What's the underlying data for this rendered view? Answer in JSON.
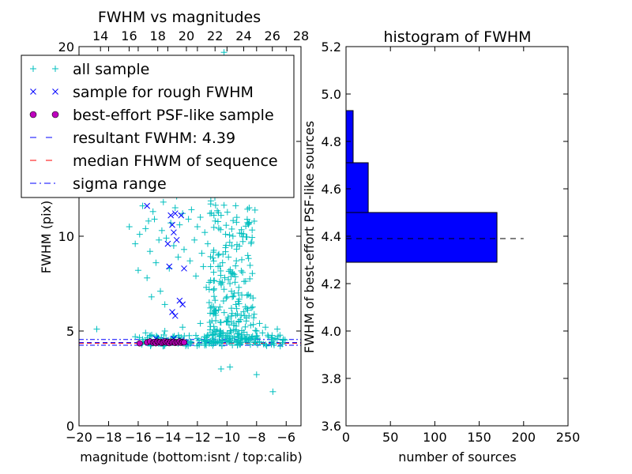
{
  "chart_data": [
    {
      "type": "scatter",
      "title": "FWHM vs magnitudes",
      "xlabel": "magnitude (bottom:isnt / top:calib)",
      "ylabel": "FWHM (pix)",
      "xlim": [
        -20,
        -5
      ],
      "ylim": [
        0,
        20
      ],
      "xlim_top": [
        12.5,
        28
      ],
      "xticks": [
        "−20",
        "−18",
        "−16",
        "−14",
        "−12",
        "−10",
        "−8",
        "−6"
      ],
      "xticks_top": [
        "14",
        "16",
        "18",
        "20",
        "22",
        "24",
        "26",
        "28"
      ],
      "yticks": [
        "0",
        "5",
        "10",
        "15",
        "20"
      ],
      "legend": {
        "placement": "upper-left",
        "entries": [
          {
            "label": "all sample",
            "marker": "+",
            "color": "#00bfbf"
          },
          {
            "label": "sample for rough FWHM",
            "marker": "x",
            "color": "#0000ff"
          },
          {
            "label": "best-effort PSF-like sample",
            "marker": "o",
            "color": "#bf00bf"
          },
          {
            "label": "resultant FWHM: 4.39",
            "marker": "dashed",
            "color": "#0000ff"
          },
          {
            "label": "median FHWM of sequence",
            "marker": "dashed",
            "color": "#ff0000"
          },
          {
            "label": "sigma range",
            "marker": "dashdot",
            "color": "#0000ff"
          }
        ]
      },
      "hlines": {
        "resultant": 4.39,
        "median": 4.35,
        "sigma_low": 4.25,
        "sigma_high": 4.55
      },
      "series": [
        {
          "name": "all sample",
          "points": [
            [
              -18.8,
              5.1
            ],
            [
              -16.6,
              10.5
            ],
            [
              -16.2,
              9.6
            ],
            [
              -16.0,
              8.2
            ],
            [
              -15.9,
              10.1
            ],
            [
              -15.7,
              11.6
            ],
            [
              -15.5,
              10.4
            ],
            [
              -15.4,
              7.8
            ],
            [
              -15.3,
              10.8
            ],
            [
              -15.2,
              9.2
            ],
            [
              -15.1,
              6.8
            ],
            [
              -15.0,
              11.3
            ],
            [
              -14.9,
              10.9
            ],
            [
              -14.8,
              8.6
            ],
            [
              -14.7,
              12.4
            ],
            [
              -14.6,
              9.8
            ],
            [
              -14.5,
              7.1
            ],
            [
              -14.4,
              10.3
            ],
            [
              -14.3,
              11.8
            ],
            [
              -14.2,
              6.4
            ],
            [
              -14.1,
              9.9
            ],
            [
              -14.0,
              12.9
            ],
            [
              -13.9,
              8.3
            ],
            [
              -13.8,
              10.7
            ],
            [
              -13.7,
              13.4
            ],
            [
              -13.6,
              9.5
            ],
            [
              -13.5,
              11.5
            ],
            [
              -13.4,
              12.1
            ],
            [
              -13.3,
              8.9
            ],
            [
              -13.2,
              10.6
            ],
            [
              -13.1,
              13.1
            ],
            [
              -13.0,
              11.2
            ],
            [
              -12.9,
              9.3
            ],
            [
              -12.8,
              12.8
            ],
            [
              -12.7,
              13.3
            ],
            [
              -12.6,
              10.9
            ],
            [
              -12.5,
              8.7
            ],
            [
              -12.4,
              11.4
            ],
            [
              -12.3,
              12.6
            ],
            [
              -12.2,
              9.8
            ],
            [
              -12.1,
              7.9
            ],
            [
              -12.0,
              10.5
            ],
            [
              -11.9,
              12.3
            ],
            [
              -11.8,
              11.0
            ],
            [
              -11.7,
              9.1
            ],
            [
              -11.6,
              8.4
            ],
            [
              -11.5,
              10.2
            ],
            [
              -11.4,
              7.3
            ],
            [
              -11.3,
              9.6
            ],
            [
              -11.2,
              6.5
            ],
            [
              -11.1,
              11.7
            ],
            [
              -11.0,
              13.6
            ],
            [
              -10.9,
              8.1
            ],
            [
              -10.8,
              10.8
            ],
            [
              -10.7,
              12.2
            ],
            [
              -10.6,
              9.0
            ],
            [
              -10.5,
              7.6
            ],
            [
              -10.4,
              11.1
            ],
            [
              -10.3,
              8.6
            ],
            [
              -10.2,
              7.2
            ],
            [
              -10.1,
              9.4
            ],
            [
              -10.0,
              6.8
            ],
            [
              -9.9,
              8.9
            ],
            [
              -9.8,
              7.5
            ],
            [
              -9.7,
              6.2
            ],
            [
              -9.6,
              8.0
            ],
            [
              -9.5,
              7.0
            ],
            [
              -9.4,
              6.4
            ],
            [
              -9.3,
              5.9
            ],
            [
              -9.2,
              7.3
            ],
            [
              -9.1,
              5.6
            ],
            [
              -9.0,
              6.9
            ],
            [
              -8.8,
              5.8
            ],
            [
              -8.6,
              6.1
            ],
            [
              -8.4,
              5.3
            ],
            [
              -8.2,
              5.7
            ],
            [
              -8.0,
              5.0
            ],
            [
              -7.8,
              5.4
            ],
            [
              -7.6,
              4.9
            ],
            [
              -7.4,
              5.2
            ],
            [
              -7.2,
              4.7
            ],
            [
              -7.0,
              4.3
            ],
            [
              -6.9,
              1.8
            ],
            [
              -6.6,
              5.1
            ],
            [
              -6.4,
              4.2
            ],
            [
              -9.8,
              3.1
            ],
            [
              -8.0,
              2.7
            ],
            [
              -10.4,
              3.0
            ],
            [
              -10.2,
              19.7
            ],
            [
              -9.0,
              12.8
            ],
            [
              -11.0,
              15.5
            ],
            [
              -12.4,
              14.2
            ],
            [
              -8.5,
              11.5
            ],
            [
              -9.6,
              10.0
            ],
            [
              -10.6,
              8.4
            ],
            [
              -11.8,
              5.4
            ],
            [
              -13.0,
              5.2
            ],
            [
              -14.2,
              5.0
            ],
            [
              -15.5,
              4.9
            ],
            [
              -16.2,
              4.7
            ],
            [
              -12.0,
              4.6
            ],
            [
              -10.8,
              4.8
            ],
            [
              -9.4,
              5.0
            ],
            [
              -8.8,
              4.6
            ],
            [
              -7.8,
              4.4
            ]
          ]
        },
        {
          "name": "sample for rough FWHM",
          "points": [
            [
              -15.4,
              11.6
            ],
            [
              -13.8,
              11.1
            ],
            [
              -13.5,
              11.2
            ],
            [
              -13.1,
              11.1
            ],
            [
              -13.7,
              10.6
            ],
            [
              -13.6,
              10.2
            ],
            [
              -14.0,
              9.6
            ],
            [
              -13.4,
              9.8
            ],
            [
              -13.9,
              8.4
            ],
            [
              -12.9,
              8.3
            ],
            [
              -13.2,
              6.6
            ],
            [
              -13.7,
              6.0
            ],
            [
              -13.5,
              5.8
            ],
            [
              -13.0,
              6.4
            ],
            [
              -13.6,
              4.6
            ],
            [
              -13.1,
              4.5
            ],
            [
              -14.8,
              4.6
            ],
            [
              -15.2,
              4.4
            ],
            [
              -12.8,
              4.4
            ],
            [
              -14.2,
              4.5
            ]
          ]
        },
        {
          "name": "best-effort PSF-like sample",
          "points": [
            [
              -15.9,
              4.35
            ],
            [
              -15.4,
              4.4
            ],
            [
              -15.2,
              4.45
            ],
            [
              -15.0,
              4.38
            ],
            [
              -14.9,
              4.42
            ],
            [
              -14.8,
              4.36
            ],
            [
              -14.7,
              4.44
            ],
            [
              -14.6,
              4.4
            ],
            [
              -14.5,
              4.43
            ],
            [
              -14.4,
              4.37
            ],
            [
              -14.3,
              4.41
            ],
            [
              -14.2,
              4.45
            ],
            [
              -14.1,
              4.39
            ],
            [
              -14.0,
              4.42
            ],
            [
              -13.9,
              4.36
            ],
            [
              -13.8,
              4.44
            ],
            [
              -13.7,
              4.4
            ],
            [
              -13.6,
              4.43
            ],
            [
              -13.5,
              4.37
            ],
            [
              -13.4,
              4.41
            ],
            [
              -13.3,
              4.39
            ],
            [
              -13.2,
              4.45
            ],
            [
              -13.1,
              4.38
            ],
            [
              -13.0,
              4.42
            ],
            [
              -12.9,
              4.4
            ]
          ]
        }
      ]
    },
    {
      "type": "bar",
      "orientation": "horizontal",
      "title": "histogram of FWHM",
      "xlabel": "number of sources",
      "ylabel": "FWHM of best-effort PSF-like sources",
      "xlim": [
        0,
        250
      ],
      "ylim": [
        3.6,
        5.2
      ],
      "xticks": [
        "0",
        "50",
        "100",
        "150",
        "200",
        "250"
      ],
      "yticks": [
        "3.6",
        "3.8",
        "4.0",
        "4.2",
        "4.4",
        "4.6",
        "4.8",
        "5.0",
        "5.2"
      ],
      "bins": [
        {
          "y0": 4.29,
          "y1": 4.5,
          "count": 170
        },
        {
          "y0": 4.5,
          "y1": 4.71,
          "count": 25
        },
        {
          "y0": 4.71,
          "y1": 4.93,
          "count": 8
        }
      ],
      "hline": {
        "y": 4.39,
        "xmax": 200,
        "style": "dashed",
        "color": "#000000"
      },
      "bar_color": "#0000ff"
    }
  ]
}
